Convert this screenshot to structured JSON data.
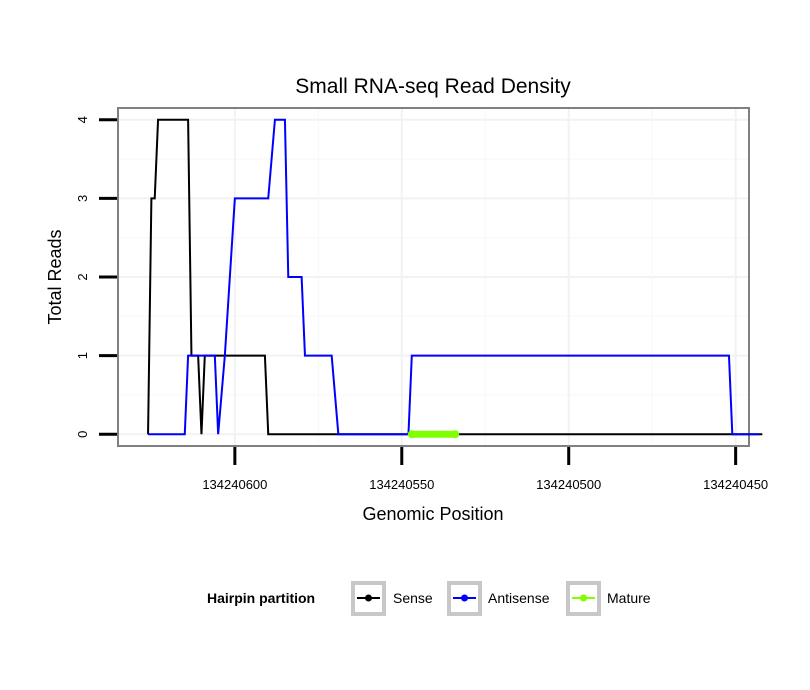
{
  "chart_data": {
    "type": "line",
    "title": "Small RNA-seq Read Density",
    "xlabel": "Genomic Position",
    "ylabel": "Total Reads",
    "x_reversed": true,
    "xlim": [
      134240635,
      134240446
    ],
    "ylim": [
      -0.15,
      4.15
    ],
    "x_ticks": [
      134240600,
      134240550,
      134240500,
      134240450
    ],
    "x_tick_labels": [
      "134240600",
      "134240550",
      "134240500",
      "134240450"
    ],
    "y_ticks": [
      0,
      1,
      2,
      3,
      4
    ],
    "y_tick_labels": [
      "0",
      "1",
      "2",
      "3",
      "4"
    ],
    "grid": true,
    "legend": {
      "title": "Hairpin partition",
      "position": "bottom",
      "entries": [
        "Sense",
        "Antisense",
        "Mature"
      ]
    },
    "series": [
      {
        "name": "Sense",
        "color": "#000000",
        "x": [
          134240626,
          134240625,
          134240624,
          134240623,
          134240622,
          134240620,
          134240614,
          134240613,
          134240611,
          134240610,
          134240609,
          134240606,
          134240605,
          134240592,
          134240591,
          134240590,
          134240449,
          134240448,
          134240446,
          134240445,
          134240442
        ],
        "y": [
          0,
          3,
          3,
          4,
          4,
          4,
          4,
          1,
          1,
          0,
          1,
          1,
          1,
          1,
          1,
          0,
          0,
          0,
          0,
          0,
          0
        ]
      },
      {
        "name": "Antisense",
        "color": "#0000ff",
        "x": [
          134240626,
          134240615,
          134240614,
          134240607,
          134240606,
          134240605,
          134240603,
          134240600,
          134240590,
          134240588,
          134240587,
          134240585,
          134240584,
          134240580,
          134240579,
          134240571,
          134240569,
          134240548,
          134240547,
          134240452,
          134240451,
          134240446,
          134240445,
          134240443
        ],
        "y": [
          0,
          0,
          1,
          1,
          1,
          0,
          1,
          3,
          3,
          4,
          4,
          4,
          2,
          2,
          1,
          1,
          0,
          0,
          1,
          1,
          0,
          0,
          0,
          0
        ]
      },
      {
        "name": "Mature",
        "color": "#7fff00",
        "x": [
          134240547,
          134240534
        ],
        "y": [
          0,
          0
        ]
      }
    ]
  }
}
